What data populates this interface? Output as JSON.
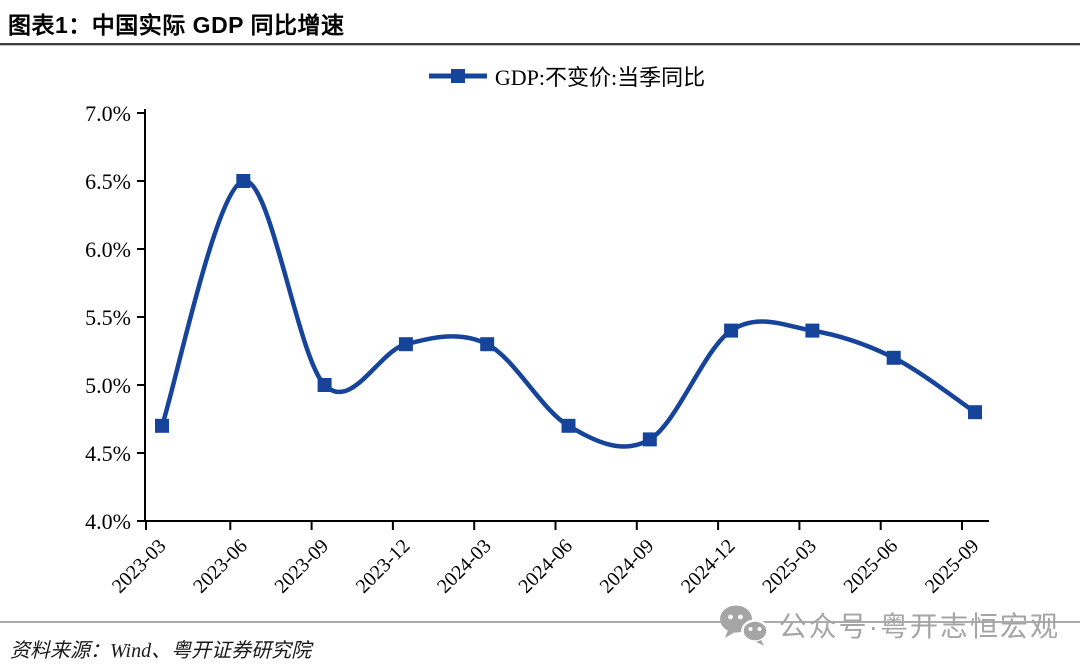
{
  "header": {
    "title": "图表1：中国实际 GDP 同比增速"
  },
  "legend": {
    "label": "GDP:不变价:当季同比"
  },
  "chart_data": {
    "type": "line",
    "title": "中国实际GDP同比增速",
    "series": [
      {
        "name": "GDP:不变价:当季同比",
        "values": [
          4.7,
          6.5,
          5.0,
          5.3,
          5.3,
          4.7,
          4.6,
          5.4,
          5.4,
          5.2,
          4.8
        ]
      }
    ],
    "categories": [
      "2023-03",
      "2023-06",
      "2023-09",
      "2023-12",
      "2024-03",
      "2024-06",
      "2024-09",
      "2024-12",
      "2025-03",
      "2025-06",
      "2025-09"
    ],
    "unit": "%",
    "xlabel": "",
    "ylabel": "",
    "ylim": [
      4.0,
      7.0
    ],
    "ytick_step": 0.5,
    "ytick_labels": [
      "7.0%",
      "6.5%",
      "6.0%",
      "5.5%",
      "5.0%",
      "4.5%",
      "4.0%"
    ],
    "grid": false,
    "smooth": true,
    "marker": "square",
    "legend_position": "top",
    "line_color": "#16449A",
    "axis_color": "#000000"
  },
  "watermark": {
    "text": "公众号·粤开志恒宏观",
    "icon": "wechat-icon",
    "color": "#a5a5a5"
  },
  "footer": {
    "source": "资料来源：Wind、粤开证券研究院"
  }
}
